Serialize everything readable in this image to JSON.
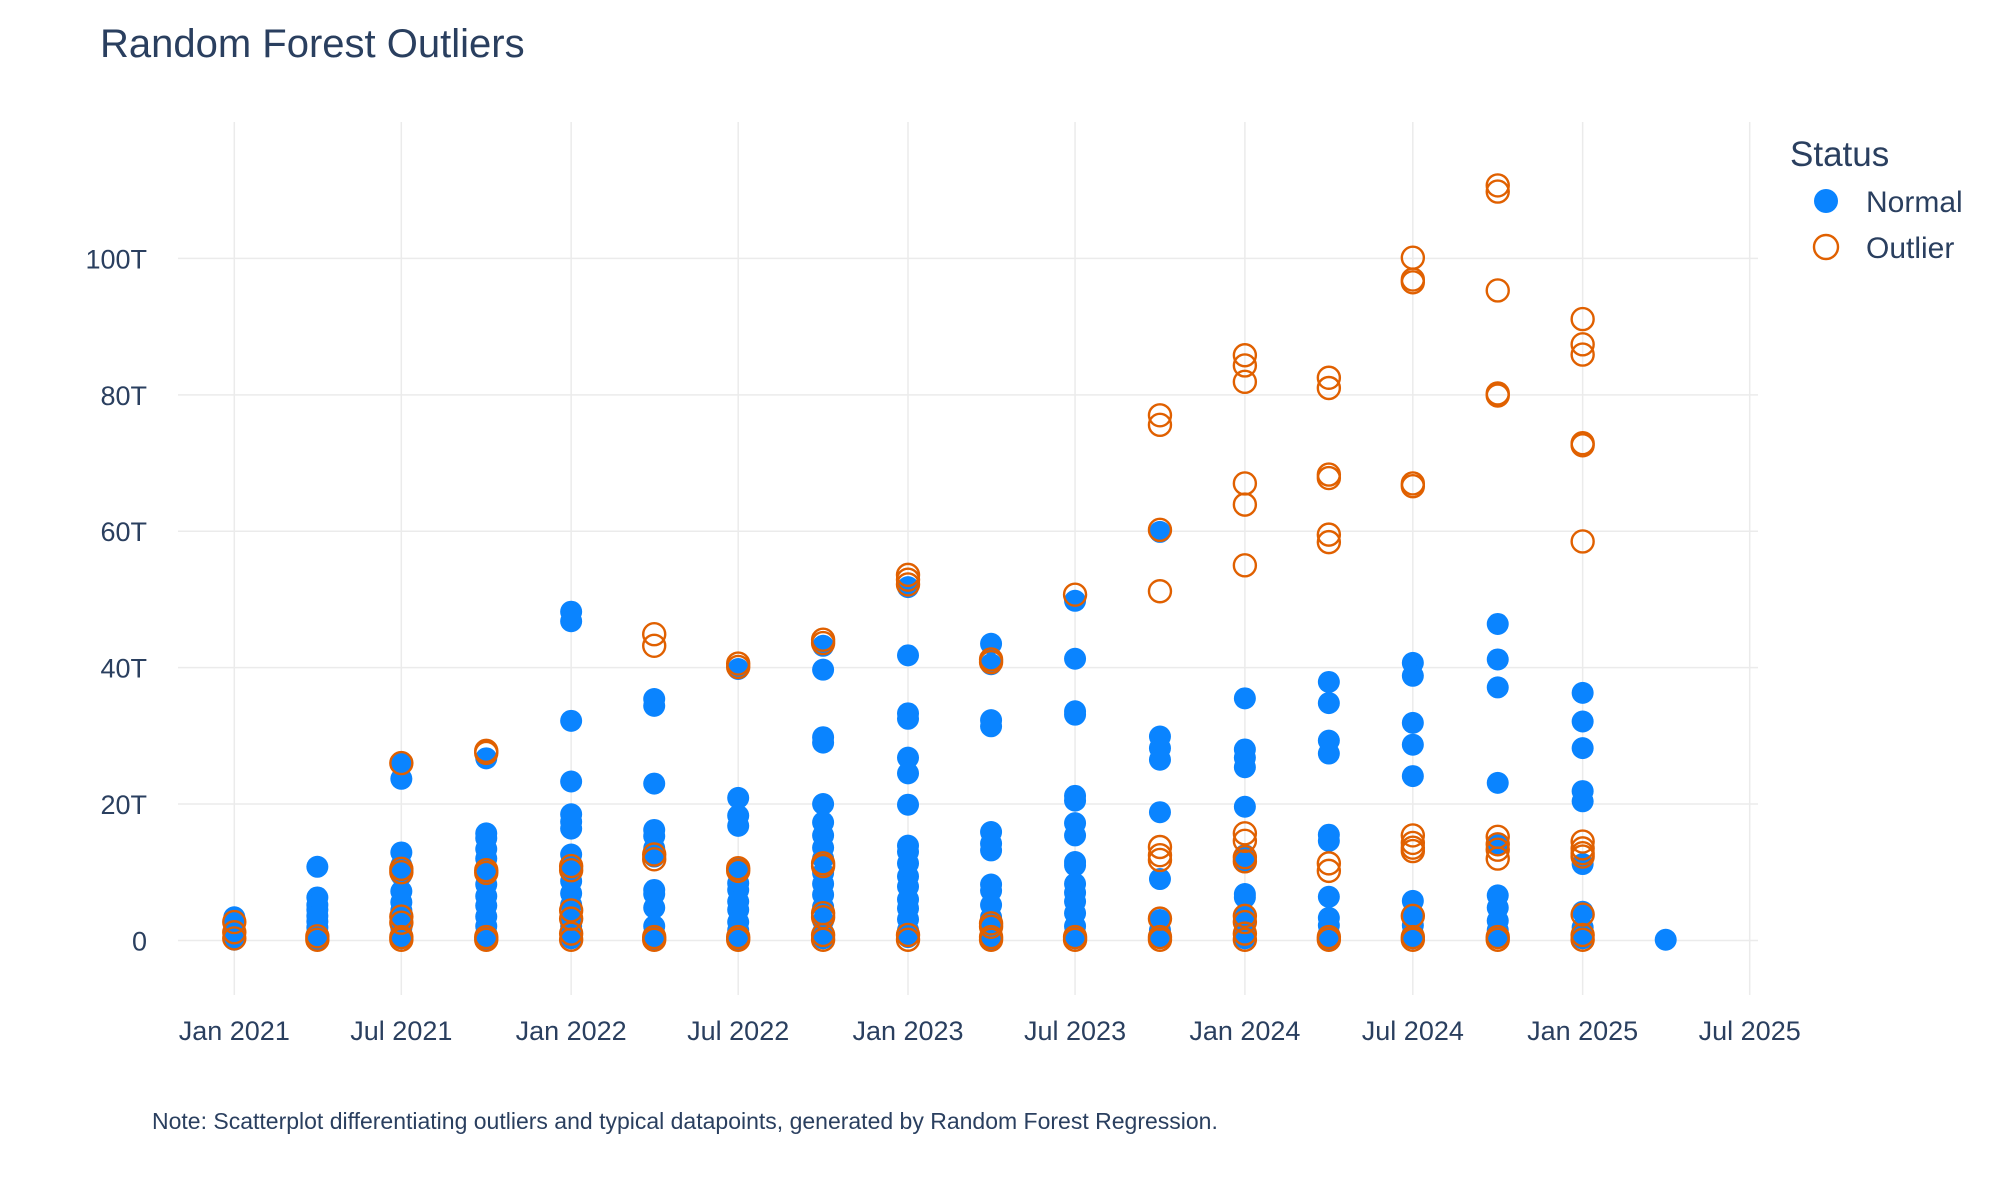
{
  "chart_data": {
    "type": "scatter",
    "title": "Random Forest Outliers",
    "note": "Note: Scatterplot differentiating outliers and typical datapoints, generated by Random Forest Regression.",
    "legend": {
      "title": "Status",
      "placement": "top-right"
    },
    "xlabel": "",
    "ylabel": "",
    "xlim": [
      "2020-11-01",
      "2025-07-10"
    ],
    "ylim": [
      -8,
      120
    ],
    "x_ticks": [
      "2021-01-01",
      "2021-07-01",
      "2022-01-01",
      "2022-07-01",
      "2023-01-01",
      "2023-07-01",
      "2024-01-01",
      "2024-07-01",
      "2025-01-01",
      "2025-07-01"
    ],
    "x_tick_labels": [
      "Jan 2021",
      "Jul 2021",
      "Jan 2022",
      "Jul 2022",
      "Jan 2023",
      "Jul 2023",
      "Jan 2024",
      "Jul 2024",
      "Jan 2025",
      "Jul 2025"
    ],
    "y_ticks": [
      0,
      20,
      40,
      60,
      80,
      100
    ],
    "y_tick_labels": [
      "0",
      "20T",
      "40T",
      "60T",
      "80T",
      "100T"
    ],
    "grid": true,
    "series": [
      {
        "name": "Normal",
        "color": "#0a84ff",
        "marker": "filled-circle",
        "points": [
          [
            "2021-01-01",
            [
              3.4,
              2.5,
              1.5,
              0.8,
              0.3,
              0.1
            ]
          ],
          [
            "2021-04-01",
            [
              10.8,
              6.3,
              5.2,
              4.5,
              3.6,
              2.8,
              1.9,
              1.1,
              0.5,
              0.2
            ]
          ],
          [
            "2021-07-01",
            [
              26.0,
              23.7,
              12.9,
              11.0,
              9.6,
              7.2,
              5.6,
              4.4,
              3.1,
              1.8,
              0.9,
              0.3
            ]
          ],
          [
            "2021-10-01",
            [
              26.7,
              15.7,
              15.0,
              13.4,
              12.0,
              9.9,
              8.2,
              6.5,
              5.1,
              3.5,
              2.1,
              1.0,
              0.2
            ]
          ],
          [
            "2022-01-01",
            [
              48.2,
              46.8,
              32.2,
              23.3,
              18.5,
              17.4,
              16.4,
              12.6,
              10.6,
              8.7,
              6.9,
              5.2,
              3.6,
              2.1,
              1.0,
              0.3
            ]
          ],
          [
            "2022-04-01",
            [
              35.4,
              34.4,
              23.0,
              16.2,
              15.3,
              13.5,
              12.3,
              7.4,
              6.8,
              4.8,
              2.1,
              1.0,
              0.2
            ]
          ],
          [
            "2022-07-01",
            [
              39.8,
              20.9,
              18.3,
              16.8,
              10.6,
              8.4,
              7.4,
              5.7,
              4.5,
              2.7,
              1.5,
              0.6,
              0.1
            ]
          ],
          [
            "2022-10-01",
            [
              43.2,
              39.7,
              29.8,
              29.0,
              20.0,
              17.3,
              15.4,
              13.6,
              12.0,
              9.9,
              8.3,
              6.7,
              4.9,
              2.9,
              1.2,
              0.3
            ]
          ],
          [
            "2023-01-01",
            [
              51.8,
              41.8,
              33.3,
              32.5,
              26.8,
              24.5,
              19.9,
              13.9,
              13.0,
              11.3,
              9.4,
              7.9,
              6.0,
              4.7,
              3.1,
              1.5,
              0.5
            ]
          ],
          [
            "2023-04-01",
            [
              43.5,
              40.5,
              32.3,
              31.4,
              15.9,
              14.2,
              13.2,
              8.2,
              7.3,
              5.2,
              3.4,
              2.0,
              0.9,
              0.2
            ]
          ],
          [
            "2023-07-01",
            [
              49.8,
              41.3,
              33.6,
              33.1,
              21.2,
              20.5,
              17.2,
              15.4,
              11.5,
              11.0,
              8.3,
              7.0,
              5.7,
              4.0,
              2.1,
              1.0,
              0.3
            ]
          ],
          [
            "2023-10-01",
            [
              59.9,
              29.9,
              28.2,
              26.5,
              18.8,
              9.0,
              3.0,
              1.5,
              0.4
            ]
          ],
          [
            "2024-01-01",
            [
              35.5,
              28.0,
              26.8,
              25.4,
              19.6,
              12.5,
              11.6,
              6.8,
              6.3,
              3.7,
              2.2,
              1.0,
              0.3
            ]
          ],
          [
            "2024-04-01",
            [
              37.9,
              34.8,
              29.3,
              27.4,
              15.5,
              14.6,
              6.4,
              3.3,
              2.2,
              1.0,
              0.2
            ]
          ],
          [
            "2024-07-01",
            [
              40.7,
              38.8,
              31.9,
              28.7,
              24.1,
              5.8,
              3.9,
              2.2,
              1.0,
              0.3
            ]
          ],
          [
            "2024-10-01",
            [
              46.4,
              41.2,
              37.1,
              23.1,
              14.0,
              6.6,
              4.8,
              2.9,
              1.5,
              0.4
            ]
          ],
          [
            "2025-01-01",
            [
              36.3,
              32.1,
              28.2,
              21.9,
              20.4,
              11.2,
              4.2,
              1.9,
              0.3
            ]
          ],
          [
            "2025-04-01",
            [
              0.1
            ]
          ]
        ]
      },
      {
        "name": "Outlier",
        "color": "#e06000",
        "marker": "open-circle",
        "points": [
          [
            "2021-01-01",
            [
              2.7,
              1.2,
              0.3
            ]
          ],
          [
            "2021-04-01",
            [
              0.6,
              0.1
            ]
          ],
          [
            "2021-07-01",
            [
              26.0,
              10.5,
              10.0,
              3.5,
              2.6,
              0.5,
              0.1
            ]
          ],
          [
            "2021-10-01",
            [
              27.8,
              27.5,
              10.3,
              9.9,
              0.5,
              0.1
            ]
          ],
          [
            "2022-01-01",
            [
              10.9,
              10.3,
              4.4,
              3.2,
              1.0,
              0.1
            ]
          ],
          [
            "2022-04-01",
            [
              44.9,
              43.2,
              12.6,
              11.9,
              0.5,
              0.1
            ]
          ],
          [
            "2022-07-01",
            [
              40.6,
              40.1,
              10.6,
              10.2,
              0.5,
              0.1
            ]
          ],
          [
            "2022-10-01",
            [
              44.1,
              43.6,
              11.3,
              10.9,
              4.0,
              3.4,
              0.8,
              0.1
            ]
          ],
          [
            "2023-01-01",
            [
              53.6,
              52.9,
              52.2,
              0.8,
              0.1
            ]
          ],
          [
            "2023-04-01",
            [
              41.2,
              40.8,
              2.5,
              2.0,
              0.5,
              0.1
            ]
          ],
          [
            "2023-07-01",
            [
              50.7,
              0.5,
              0.1
            ]
          ],
          [
            "2023-10-01",
            [
              77.0,
              75.6,
              60.2,
              51.2,
              13.7,
              12.5,
              11.8,
              3.2,
              0.5,
              0.1
            ]
          ],
          [
            "2024-01-01",
            [
              85.8,
              84.3,
              81.9,
              67.0,
              63.9,
              55.0,
              15.7,
              14.6,
              12.2,
              11.6,
              3.6,
              2.7,
              1.0,
              0.1
            ]
          ],
          [
            "2024-04-01",
            [
              82.5,
              81.0,
              68.3,
              67.8,
              59.5,
              58.4,
              11.3,
              10.2,
              0.5,
              0.1
            ]
          ],
          [
            "2024-07-01",
            [
              100.1,
              96.9,
              96.5,
              67.0,
              66.6,
              15.4,
              14.3,
              13.6,
              13.1,
              3.6,
              0.5,
              0.1
            ]
          ],
          [
            "2024-10-01",
            [
              110.7,
              109.8,
              95.3,
              80.2,
              79.9,
              15.2,
              14.1,
              13.3,
              12.0,
              0.5,
              0.1
            ]
          ],
          [
            "2025-01-01",
            [
              91.1,
              87.4,
              85.9,
              72.9,
              72.6,
              58.5,
              14.5,
              13.5,
              12.8,
              12.3,
              3.8,
              0.8,
              0.1
            ]
          ]
        ]
      }
    ]
  }
}
